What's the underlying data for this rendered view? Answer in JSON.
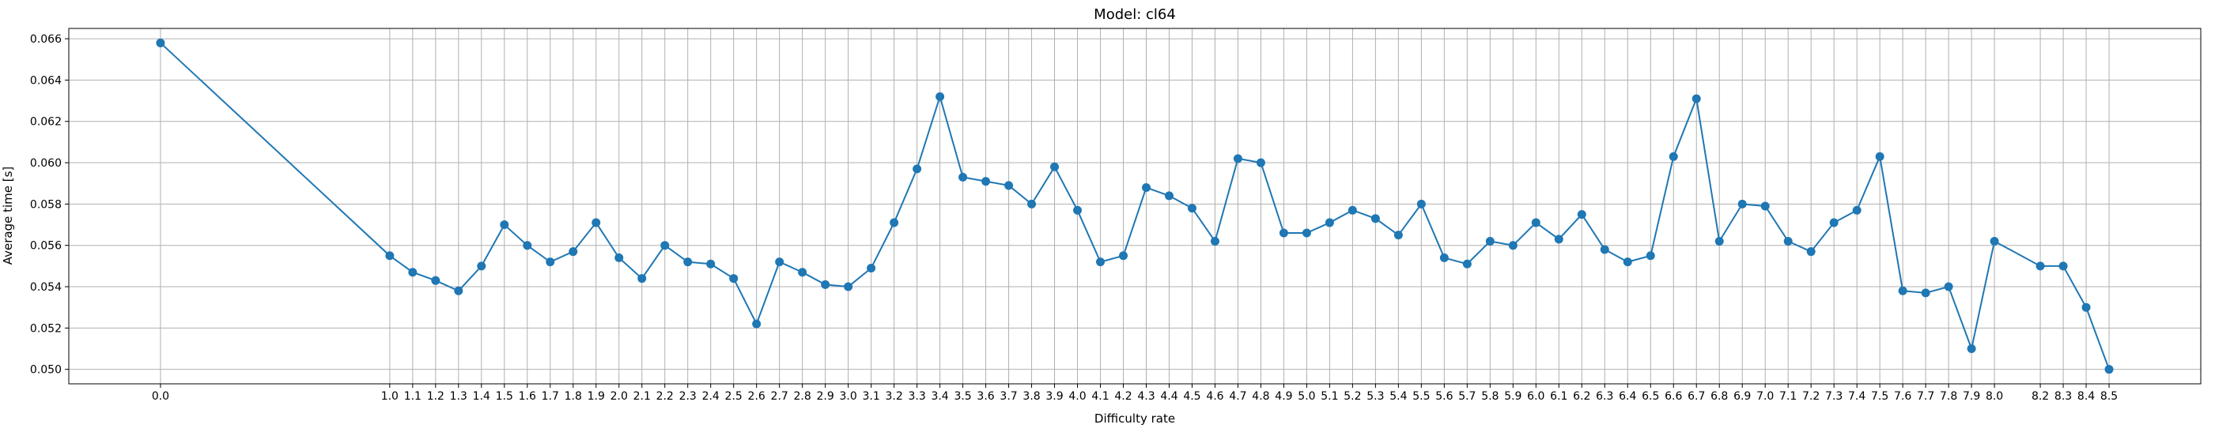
{
  "chart_data": {
    "type": "line",
    "title": "Model: cl64",
    "xlabel": "Difficulty rate",
    "ylabel": "Average time [s]",
    "xlim": [
      -0.4,
      8.9
    ],
    "ylim": [
      0.0493,
      0.0665
    ],
    "grid": true,
    "color": "#1f77b4",
    "yticks": [
      0.05,
      0.052,
      0.054,
      0.056,
      0.058,
      0.06,
      0.062,
      0.064,
      0.066
    ],
    "ytick_labels": [
      "0.050",
      "0.052",
      "0.054",
      "0.056",
      "0.058",
      "0.060",
      "0.062",
      "0.064",
      "0.066"
    ],
    "x": [
      0.0,
      1.0,
      1.1,
      1.2,
      1.3,
      1.4,
      1.5,
      1.6,
      1.7,
      1.8,
      1.9,
      2.0,
      2.1,
      2.2,
      2.3,
      2.4,
      2.5,
      2.6,
      2.7,
      2.8,
      2.9,
      3.0,
      3.1,
      3.2,
      3.3,
      3.4,
      3.5,
      3.6,
      3.7,
      3.8,
      3.9,
      4.0,
      4.1,
      4.2,
      4.3,
      4.4,
      4.5,
      4.6,
      4.7,
      4.8,
      4.9,
      5.0,
      5.1,
      5.2,
      5.3,
      5.4,
      5.5,
      5.6,
      5.7,
      5.8,
      5.9,
      6.0,
      6.1,
      6.2,
      6.3,
      6.4,
      6.5,
      6.6,
      6.7,
      6.8,
      6.9,
      7.0,
      7.1,
      7.2,
      7.3,
      7.4,
      7.5,
      7.6,
      7.7,
      7.8,
      7.9,
      8.0,
      8.2,
      8.3,
      8.4,
      8.5
    ],
    "xtick_labels": [
      "0.0",
      "1.0",
      "1.1",
      "1.2",
      "1.3",
      "1.4",
      "1.5",
      "1.6",
      "1.7",
      "1.8",
      "1.9",
      "2.0",
      "2.1",
      "2.2",
      "2.3",
      "2.4",
      "2.5",
      "2.6",
      "2.7",
      "2.8",
      "2.9",
      "3.0",
      "3.1",
      "3.2",
      "3.3",
      "3.4",
      "3.5",
      "3.6",
      "3.7",
      "3.8",
      "3.9",
      "4.0",
      "4.1",
      "4.2",
      "4.3",
      "4.4",
      "4.5",
      "4.6",
      "4.7",
      "4.8",
      "4.9",
      "5.0",
      "5.1",
      "5.2",
      "5.3",
      "5.4",
      "5.5",
      "5.6",
      "5.7",
      "5.8",
      "5.9",
      "6.0",
      "6.1",
      "6.2",
      "6.3",
      "6.4",
      "6.5",
      "6.6",
      "6.7",
      "6.8",
      "6.9",
      "7.0",
      "7.1",
      "7.2",
      "7.3",
      "7.4",
      "7.5",
      "7.6",
      "7.7",
      "7.8",
      "7.9",
      "8.0",
      "8.2",
      "8.3",
      "8.4",
      "8.5"
    ],
    "y": [
      0.0658,
      0.0555,
      0.0547,
      0.0543,
      0.0538,
      0.055,
      0.057,
      0.056,
      0.0552,
      0.0557,
      0.0571,
      0.0554,
      0.0544,
      0.056,
      0.0552,
      0.0551,
      0.0544,
      0.0522,
      0.0552,
      0.0547,
      0.0541,
      0.054,
      0.0549,
      0.0571,
      0.0597,
      0.0632,
      0.0593,
      0.0591,
      0.0589,
      0.058,
      0.0598,
      0.0577,
      0.0552,
      0.0555,
      0.0588,
      0.0584,
      0.0578,
      0.0562,
      0.0602,
      0.06,
      0.0566,
      0.0566,
      0.0571,
      0.0577,
      0.0573,
      0.0565,
      0.058,
      0.0554,
      0.0551,
      0.0562,
      0.056,
      0.0571,
      0.0563,
      0.0575,
      0.0558,
      0.0552,
      0.0555,
      0.0603,
      0.0631,
      0.0562,
      0.058,
      0.0579,
      0.0562,
      0.0557,
      0.0571,
      0.0577,
      0.0603,
      0.0538,
      0.0537,
      0.054,
      0.051,
      0.0562,
      0.055,
      0.055,
      0.053,
      0.05
    ]
  }
}
